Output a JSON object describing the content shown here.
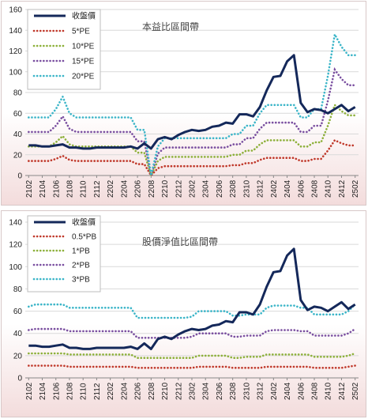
{
  "chart_data": [
    {
      "type": "line",
      "title": "本益比區間帶",
      "ylim": [
        0,
        160
      ],
      "yticks": [
        0,
        20,
        40,
        60,
        80,
        100,
        120,
        140,
        160
      ],
      "x_tick_labels": [
        "2102",
        "2104",
        "2106",
        "2108",
        "2110",
        "2112",
        "2202",
        "2204",
        "2206",
        "2208",
        "2210",
        "2212",
        "2302",
        "2304",
        "2306",
        "2308",
        "2310",
        "2312",
        "2402",
        "2404",
        "2406",
        "2408",
        "2410",
        "2412",
        "2502"
      ],
      "grid": true,
      "legend_position": "top-left",
      "series": [
        {
          "name": "收盤價",
          "color": "#14285a",
          "style": "solid",
          "values": [
            29,
            29,
            28,
            28,
            29,
            30,
            27,
            27,
            26,
            26,
            27,
            27,
            27,
            27,
            27,
            28,
            26,
            31,
            26,
            35,
            37,
            35,
            39,
            42,
            44,
            43,
            44,
            47,
            48,
            51,
            50,
            59,
            59,
            57,
            66,
            82,
            95,
            96,
            110,
            116,
            70,
            61,
            64,
            63,
            60,
            64,
            68,
            62,
            66
          ]
        },
        {
          "name": "5*PE",
          "color": "#c0392b",
          "style": "dotted",
          "values": [
            14,
            14,
            14,
            14,
            16,
            19,
            15,
            14,
            14,
            14,
            14,
            14,
            14,
            14,
            14,
            14,
            11,
            11,
            0,
            7,
            9,
            9,
            9,
            9,
            9,
            9,
            9,
            9,
            9,
            9,
            10,
            10,
            12,
            12,
            15,
            17,
            17,
            17,
            17,
            17,
            14,
            14,
            16,
            16,
            24,
            34,
            31,
            29,
            29
          ]
        },
        {
          "name": "10*PE",
          "color": "#8db03a",
          "style": "dotted",
          "values": [
            28,
            28,
            28,
            28,
            32,
            38,
            30,
            28,
            28,
            28,
            28,
            28,
            28,
            28,
            28,
            28,
            22,
            22,
            0,
            14,
            18,
            18,
            18,
            18,
            18,
            18,
            18,
            18,
            18,
            18,
            20,
            20,
            24,
            24,
            30,
            34,
            34,
            34,
            34,
            34,
            28,
            28,
            32,
            32,
            48,
            68,
            62,
            58,
            58
          ]
        },
        {
          "name": "15*PE",
          "color": "#7a4fa0",
          "style": "dotted",
          "values": [
            42,
            42,
            42,
            42,
            48,
            57,
            45,
            42,
            42,
            42,
            42,
            42,
            42,
            42,
            42,
            42,
            33,
            33,
            0,
            21,
            27,
            27,
            27,
            27,
            27,
            27,
            27,
            27,
            27,
            27,
            30,
            30,
            36,
            36,
            45,
            51,
            51,
            51,
            51,
            51,
            42,
            42,
            48,
            48,
            72,
            102,
            93,
            87,
            87
          ]
        },
        {
          "name": "20*PE",
          "color": "#3bb5c8",
          "style": "dotted",
          "values": [
            56,
            56,
            56,
            56,
            64,
            76,
            60,
            56,
            56,
            56,
            56,
            56,
            56,
            56,
            56,
            56,
            44,
            44,
            0,
            28,
            36,
            36,
            36,
            36,
            36,
            36,
            36,
            36,
            36,
            36,
            40,
            40,
            48,
            48,
            60,
            68,
            68,
            68,
            68,
            68,
            56,
            56,
            64,
            64,
            96,
            136,
            124,
            116,
            116
          ]
        }
      ]
    },
    {
      "type": "line",
      "title": "股價淨值比區間帶",
      "ylim": [
        0,
        140
      ],
      "yticks": [
        0,
        20,
        40,
        60,
        80,
        100,
        120,
        140
      ],
      "x_tick_labels": [
        "2102",
        "2104",
        "2106",
        "2108",
        "2110",
        "2112",
        "2202",
        "2204",
        "2206",
        "2208",
        "2210",
        "2212",
        "2302",
        "2304",
        "2306",
        "2308",
        "2310",
        "2312",
        "2402",
        "2404",
        "2406",
        "2408",
        "2410",
        "2412",
        "2502"
      ],
      "grid": true,
      "legend_position": "top-left",
      "series": [
        {
          "name": "收盤價",
          "color": "#14285a",
          "style": "solid",
          "values": [
            29,
            29,
            28,
            28,
            29,
            30,
            27,
            27,
            26,
            26,
            27,
            27,
            27,
            27,
            27,
            28,
            26,
            31,
            26,
            35,
            37,
            35,
            39,
            42,
            44,
            43,
            44,
            47,
            48,
            51,
            50,
            59,
            59,
            57,
            66,
            82,
            95,
            96,
            110,
            116,
            70,
            61,
            64,
            63,
            60,
            64,
            68,
            62,
            66
          ]
        },
        {
          "name": "0.5*PB",
          "color": "#c0392b",
          "style": "dotted",
          "values": [
            11,
            11,
            11,
            11,
            11,
            11,
            10,
            10,
            10,
            10,
            10,
            10,
            10,
            10,
            10,
            10,
            9,
            9,
            9,
            9,
            9,
            9,
            9,
            9,
            9,
            10,
            10,
            10,
            10,
            10,
            9,
            9,
            9,
            9,
            9,
            10,
            10,
            10,
            10,
            10,
            10,
            10,
            9,
            9,
            9,
            9,
            9,
            10,
            11
          ]
        },
        {
          "name": "1*PB",
          "color": "#8db03a",
          "style": "dotted",
          "values": [
            22,
            22,
            22,
            22,
            22,
            22,
            21,
            21,
            21,
            21,
            21,
            21,
            21,
            21,
            21,
            21,
            18,
            18,
            18,
            18,
            18,
            18,
            18,
            18,
            18,
            20,
            20,
            20,
            20,
            20,
            18,
            18,
            19,
            19,
            19,
            21,
            21,
            21,
            21,
            21,
            21,
            21,
            19,
            19,
            19,
            19,
            19,
            20,
            22
          ]
        },
        {
          "name": "2*PB",
          "color": "#7a4fa0",
          "style": "dotted",
          "values": [
            43,
            44,
            44,
            44,
            44,
            44,
            42,
            42,
            42,
            42,
            42,
            42,
            42,
            42,
            42,
            42,
            36,
            36,
            36,
            36,
            36,
            36,
            36,
            36,
            37,
            40,
            40,
            40,
            40,
            40,
            37,
            37,
            38,
            38,
            38,
            42,
            43,
            43,
            43,
            43,
            42,
            42,
            38,
            38,
            38,
            38,
            38,
            40,
            44
          ]
        },
        {
          "name": "3*PB",
          "color": "#3bb5c8",
          "style": "dotted",
          "values": [
            64,
            66,
            66,
            66,
            66,
            66,
            63,
            63,
            63,
            63,
            63,
            63,
            63,
            63,
            63,
            63,
            54,
            54,
            54,
            54,
            54,
            54,
            54,
            54,
            55,
            60,
            60,
            60,
            60,
            60,
            56,
            56,
            57,
            57,
            57,
            63,
            65,
            65,
            65,
            65,
            63,
            63,
            57,
            57,
            57,
            57,
            57,
            60,
            66
          ]
        }
      ]
    }
  ]
}
